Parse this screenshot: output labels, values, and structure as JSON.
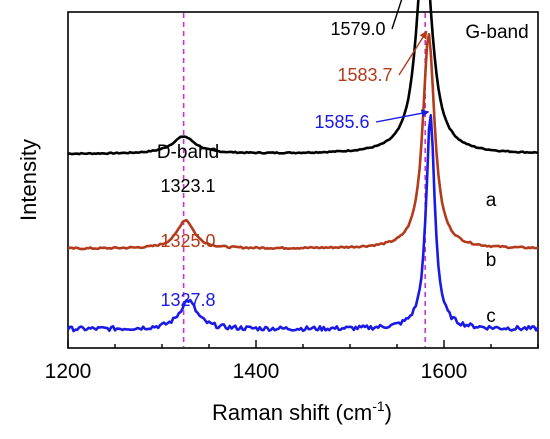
{
  "chart_data": {
    "type": "line",
    "xlabel": "Raman shift (cm",
    "xlabel_sup": "-1",
    "xlabel_close": ")",
    "ylabel": "Intensity",
    "xlim": [
      1200,
      1700
    ],
    "ylim": [
      0,
      100
    ],
    "x_ticks": [
      1200,
      1400,
      1600
    ],
    "x_tick_labels": [
      "1200",
      "1400",
      "1600"
    ],
    "y_ticks_shown": false,
    "grid": false,
    "legend": "none",
    "band_labels": [
      {
        "text": "D-band",
        "x": 1323
      },
      {
        "text": "G-band",
        "x": 1640
      }
    ],
    "reference_lines": [
      {
        "x": 1323,
        "color": "#cc33cc",
        "style": "dashed"
      },
      {
        "x": 1580,
        "color": "#cc33cc",
        "style": "dashed"
      }
    ],
    "series": [
      {
        "name": "a",
        "color": "#000000",
        "baseline": 62,
        "peaks": [
          {
            "x": 1323.1,
            "label": "1323.1",
            "height": 6,
            "width": 30
          },
          {
            "x": 1579.0,
            "label": "1579.0",
            "height": 75,
            "width": 20
          }
        ]
      },
      {
        "name": "b",
        "color": "#b33a1a",
        "baseline": 29,
        "peaks": [
          {
            "x": 1325.0,
            "label": "1325.0",
            "height": 10,
            "width": 22
          },
          {
            "x": 1583.7,
            "label": "1583.7",
            "height": 75,
            "width": 15
          }
        ]
      },
      {
        "name": "c",
        "color": "#1a1ae6",
        "baseline": 1,
        "peaks": [
          {
            "x": 1327.8,
            "label": "1327.8",
            "height": 10,
            "width": 22
          },
          {
            "x": 1585.6,
            "label": "1585.6",
            "height": 75,
            "width": 11
          }
        ]
      }
    ]
  }
}
